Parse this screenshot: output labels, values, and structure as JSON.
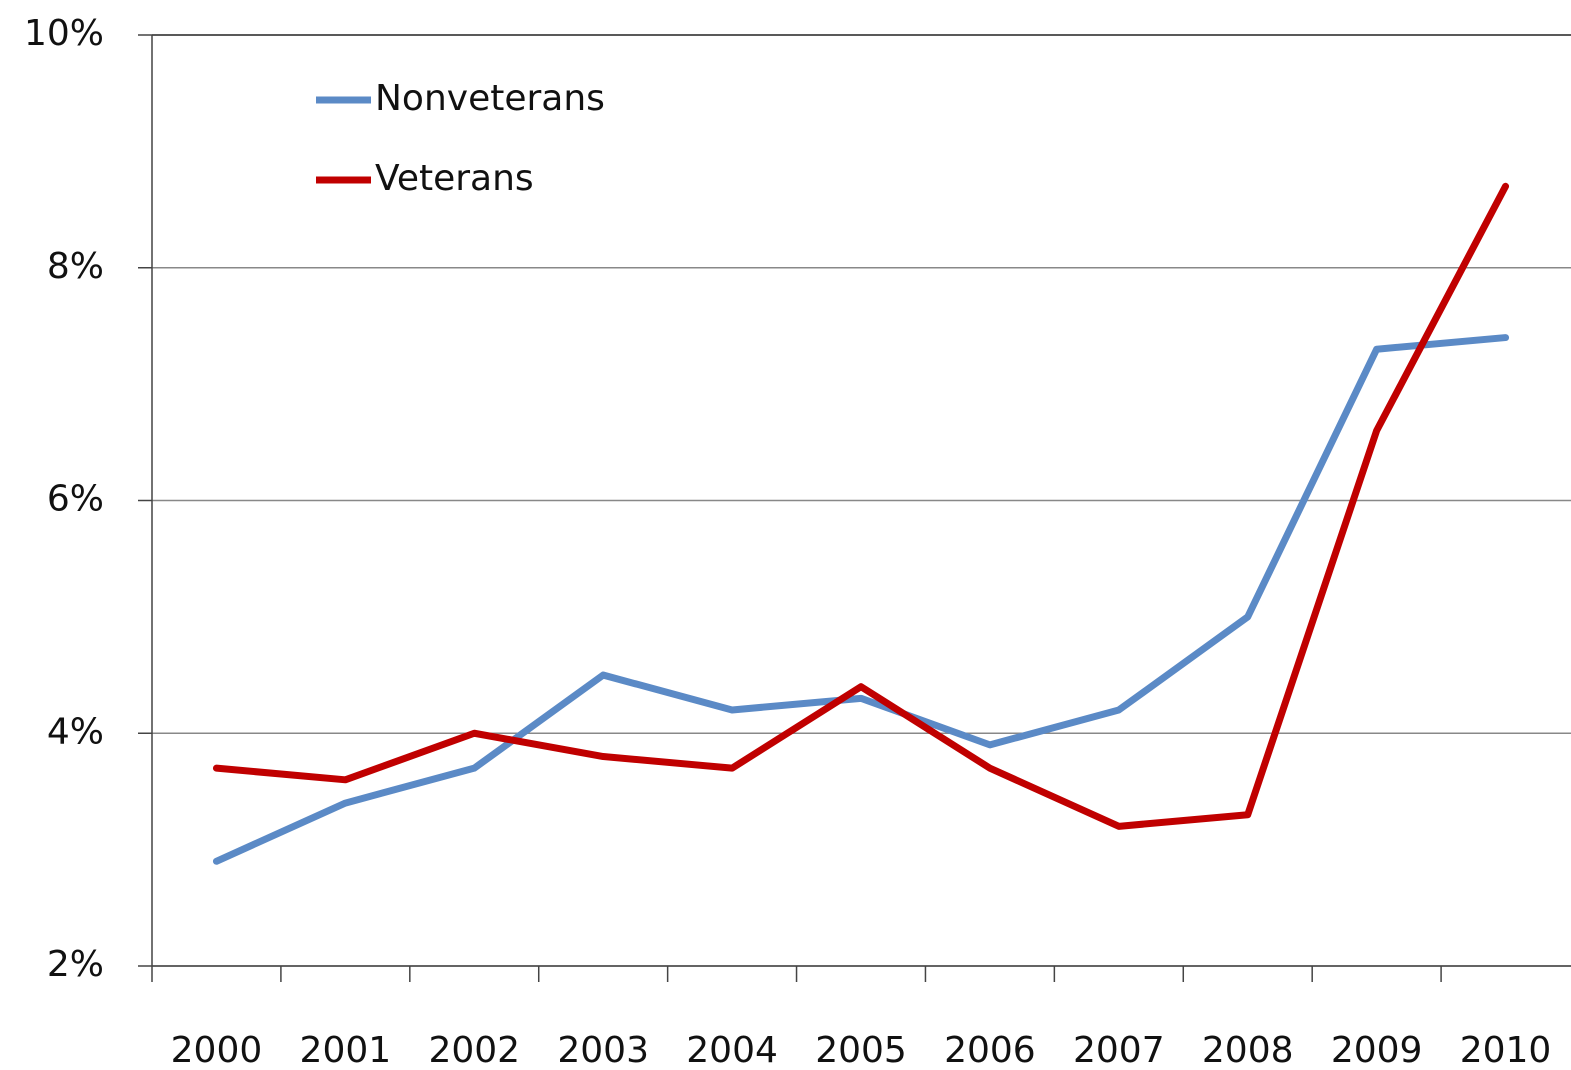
{
  "chart_data": {
    "type": "line",
    "categories": [
      "2000",
      "2001",
      "2002",
      "2003",
      "2004",
      "2005",
      "2006",
      "2007",
      "2008",
      "2009",
      "2010"
    ],
    "series": [
      {
        "name": "Nonveterans",
        "color": "#5b8ac6",
        "values": [
          2.9,
          3.4,
          3.7,
          4.5,
          4.2,
          4.3,
          3.9,
          4.2,
          5.0,
          7.3,
          7.4
        ]
      },
      {
        "name": "Veterans",
        "color": "#c00000",
        "values": [
          3.7,
          3.6,
          4.0,
          3.8,
          3.7,
          4.4,
          3.7,
          3.2,
          3.3,
          6.6,
          8.7
        ]
      }
    ],
    "ylim": [
      2,
      10
    ],
    "yticks": [
      {
        "value": 2,
        "label": "2%"
      },
      {
        "value": 4,
        "label": "4%"
      },
      {
        "value": 6,
        "label": "6%"
      },
      {
        "value": 8,
        "label": "8%"
      },
      {
        "value": 10,
        "label": "10%"
      }
    ],
    "grid": true,
    "legend": "upper left"
  }
}
